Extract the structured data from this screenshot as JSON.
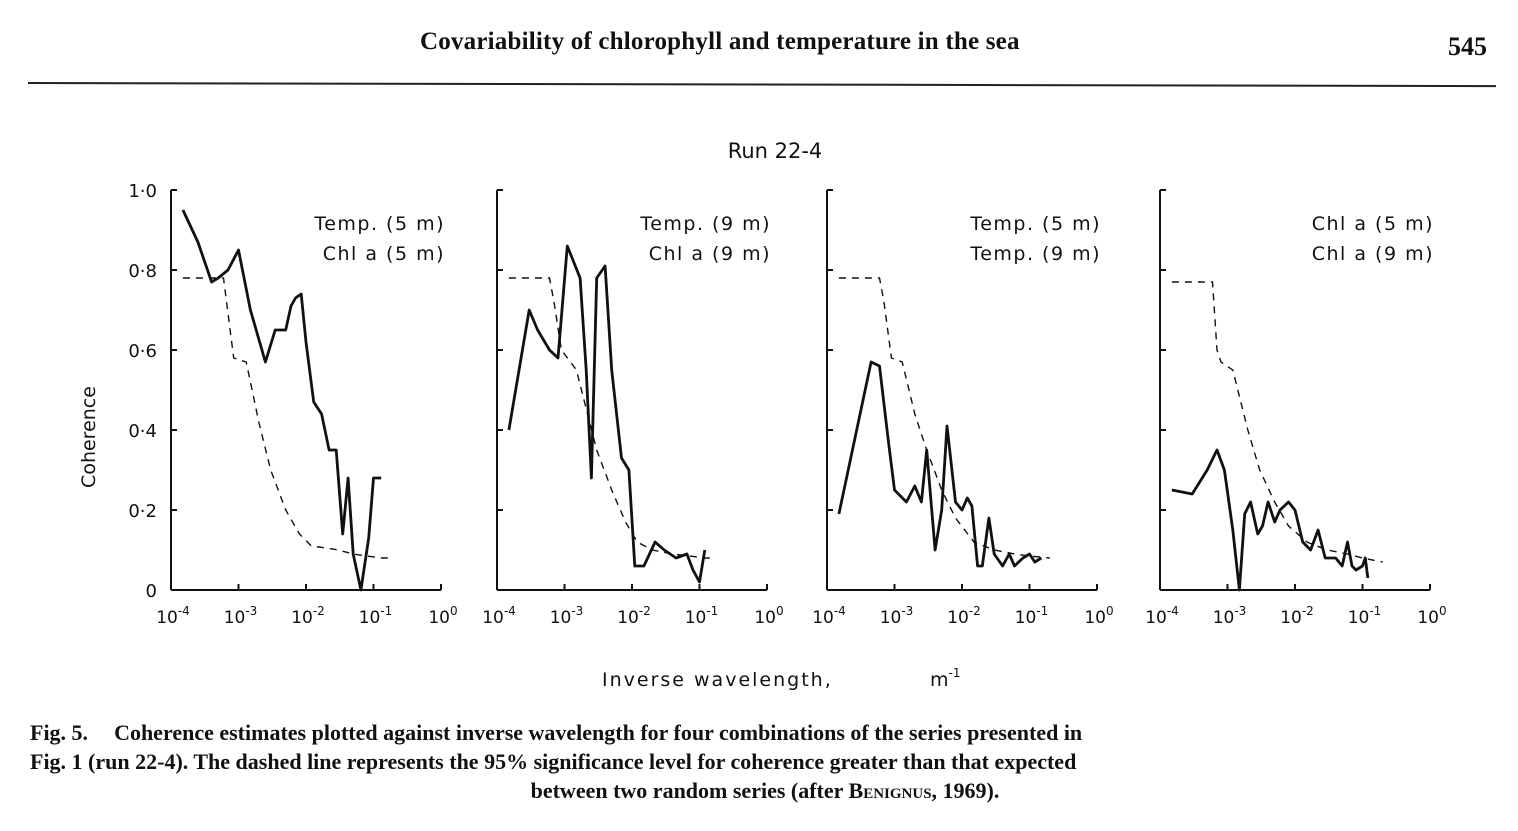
{
  "header": {
    "running_title": "Covariability of chlorophyll and temperature in the sea",
    "page_number": "545"
  },
  "figure": {
    "run_title": "Run 22-4",
    "y_axis_label": "Coherence",
    "x_axis_label": "Inverse wavelength,",
    "x_axis_unit": "m",
    "x_axis_unit_exp": "-1",
    "y_ticks": [
      "1·0",
      "0·8",
      "0·6",
      "0·4",
      "0·2",
      "0"
    ],
    "x_tick_base": "10",
    "x_tick_exps": [
      "-4",
      "-3",
      "-2",
      "-1",
      "0"
    ]
  },
  "chart_data": [
    {
      "type": "line",
      "legend": [
        "Temp. (5 m)",
        "Chl a (5 m)"
      ],
      "x_scale": "log",
      "xlim": [
        0.0001,
        1
      ],
      "ylim": [
        0,
        1.0
      ],
      "series": [
        {
          "style": "solid",
          "x": [
            0.00015,
            0.00025,
            0.0004,
            0.0005,
            0.0007,
            0.001,
            0.0015,
            0.0025,
            0.0035,
            0.005,
            0.006,
            0.007,
            0.0085,
            0.01,
            0.013,
            0.017,
            0.022,
            0.028,
            0.035,
            0.042,
            0.05,
            0.065,
            0.085,
            0.1,
            0.13
          ],
          "y": [
            0.95,
            0.87,
            0.77,
            0.78,
            0.8,
            0.85,
            0.7,
            0.57,
            0.65,
            0.65,
            0.71,
            0.73,
            0.74,
            0.62,
            0.47,
            0.44,
            0.35,
            0.35,
            0.14,
            0.28,
            0.09,
            0.0,
            0.13,
            0.28,
            0.28
          ]
        },
        {
          "style": "dashed",
          "x": [
            0.00015,
            0.0004,
            0.0005,
            0.0006,
            0.00085,
            0.0013,
            0.002,
            0.003,
            0.005,
            0.008,
            0.012,
            0.02,
            0.03,
            0.05,
            0.08,
            0.13,
            0.2
          ],
          "y": [
            0.78,
            0.78,
            0.78,
            0.78,
            0.58,
            0.57,
            0.42,
            0.3,
            0.2,
            0.14,
            0.11,
            0.105,
            0.1,
            0.09,
            0.085,
            0.08,
            0.08
          ]
        }
      ]
    },
    {
      "type": "line",
      "legend": [
        "Temp. (9 m)",
        "Chl a (9 m)"
      ],
      "x_scale": "log",
      "xlim": [
        0.0001,
        1
      ],
      "ylim": [
        0,
        1.0
      ],
      "series": [
        {
          "style": "solid",
          "x": [
            0.00015,
            0.0003,
            0.0004,
            0.0006,
            0.0008,
            0.0011,
            0.0017,
            0.0021,
            0.0025,
            0.003,
            0.004,
            0.005,
            0.007,
            0.009,
            0.011,
            0.015,
            0.022,
            0.03,
            0.045,
            0.065,
            0.08,
            0.1,
            0.12
          ],
          "y": [
            0.4,
            0.7,
            0.65,
            0.6,
            0.58,
            0.86,
            0.78,
            0.55,
            0.28,
            0.78,
            0.81,
            0.55,
            0.33,
            0.3,
            0.06,
            0.06,
            0.12,
            0.1,
            0.08,
            0.09,
            0.05,
            0.02,
            0.1
          ]
        },
        {
          "style": "dashed",
          "x": [
            0.00015,
            0.0005,
            0.0006,
            0.0007,
            0.0009,
            0.0015,
            0.003,
            0.005,
            0.008,
            0.012,
            0.02,
            0.04,
            0.07,
            0.12,
            0.15
          ],
          "y": [
            0.78,
            0.78,
            0.78,
            0.72,
            0.6,
            0.55,
            0.35,
            0.25,
            0.17,
            0.12,
            0.1,
            0.09,
            0.085,
            0.08,
            0.08
          ]
        }
      ]
    },
    {
      "type": "line",
      "legend": [
        "Temp. (5 m)",
        "Temp. (9 m)"
      ],
      "x_scale": "log",
      "xlim": [
        0.0001,
        1
      ],
      "ylim": [
        0,
        1.0
      ],
      "series": [
        {
          "style": "solid",
          "x": [
            0.00015,
            0.00045,
            0.0006,
            0.0008,
            0.001,
            0.0015,
            0.002,
            0.0025,
            0.003,
            0.004,
            0.005,
            0.006,
            0.008,
            0.01,
            0.012,
            0.014,
            0.017,
            0.02,
            0.025,
            0.03,
            0.04,
            0.05,
            0.06,
            0.08,
            0.1,
            0.12,
            0.15
          ],
          "y": [
            0.19,
            0.57,
            0.56,
            0.38,
            0.25,
            0.22,
            0.26,
            0.22,
            0.35,
            0.1,
            0.2,
            0.41,
            0.22,
            0.2,
            0.23,
            0.21,
            0.06,
            0.06,
            0.18,
            0.09,
            0.06,
            0.09,
            0.06,
            0.08,
            0.09,
            0.07,
            0.08
          ]
        },
        {
          "style": "dashed",
          "x": [
            0.00015,
            0.0005,
            0.0006,
            0.0007,
            0.0009,
            0.0013,
            0.002,
            0.003,
            0.005,
            0.008,
            0.015,
            0.03,
            0.06,
            0.1,
            0.2
          ],
          "y": [
            0.78,
            0.78,
            0.78,
            0.72,
            0.58,
            0.57,
            0.44,
            0.35,
            0.25,
            0.18,
            0.12,
            0.1,
            0.09,
            0.085,
            0.08
          ]
        }
      ]
    },
    {
      "type": "line",
      "legend": [
        "Chl a (5 m)",
        "Chl a (9 m)"
      ],
      "x_scale": "log",
      "xlim": [
        0.0001,
        1
      ],
      "ylim": [
        0,
        1.0
      ],
      "series": [
        {
          "style": "solid",
          "x": [
            0.00015,
            0.0003,
            0.0005,
            0.0007,
            0.0009,
            0.0012,
            0.0015,
            0.0018,
            0.0022,
            0.0028,
            0.0033,
            0.004,
            0.005,
            0.006,
            0.008,
            0.01,
            0.013,
            0.017,
            0.022,
            0.028,
            0.035,
            0.04,
            0.05,
            0.06,
            0.07,
            0.08,
            0.1,
            0.11,
            0.12
          ],
          "y": [
            0.25,
            0.24,
            0.3,
            0.35,
            0.3,
            0.15,
            0.0,
            0.19,
            0.22,
            0.14,
            0.16,
            0.22,
            0.17,
            0.2,
            0.22,
            0.2,
            0.12,
            0.1,
            0.15,
            0.08,
            0.08,
            0.08,
            0.06,
            0.12,
            0.06,
            0.05,
            0.06,
            0.08,
            0.03
          ]
        },
        {
          "style": "dashed",
          "x": [
            0.00015,
            0.0004,
            0.0006,
            0.0007,
            0.0008,
            0.0012,
            0.002,
            0.003,
            0.005,
            0.008,
            0.015,
            0.03,
            0.06,
            0.1,
            0.2
          ],
          "y": [
            0.77,
            0.77,
            0.77,
            0.6,
            0.57,
            0.55,
            0.4,
            0.3,
            0.22,
            0.16,
            0.12,
            0.1,
            0.09,
            0.08,
            0.07
          ]
        }
      ]
    }
  ],
  "caption": {
    "label": "Fig. 5.",
    "line1": "Coherence estimates plotted against inverse wavelength for four combinations of the series presented in",
    "line2": "Fig. 1 (run 22-4). The dashed line represents the 95% significance level for coherence greater than that expected",
    "line3_pre": "between two random series (after ",
    "line3_author": "Benignus",
    "line3_post": ", 1969)."
  }
}
